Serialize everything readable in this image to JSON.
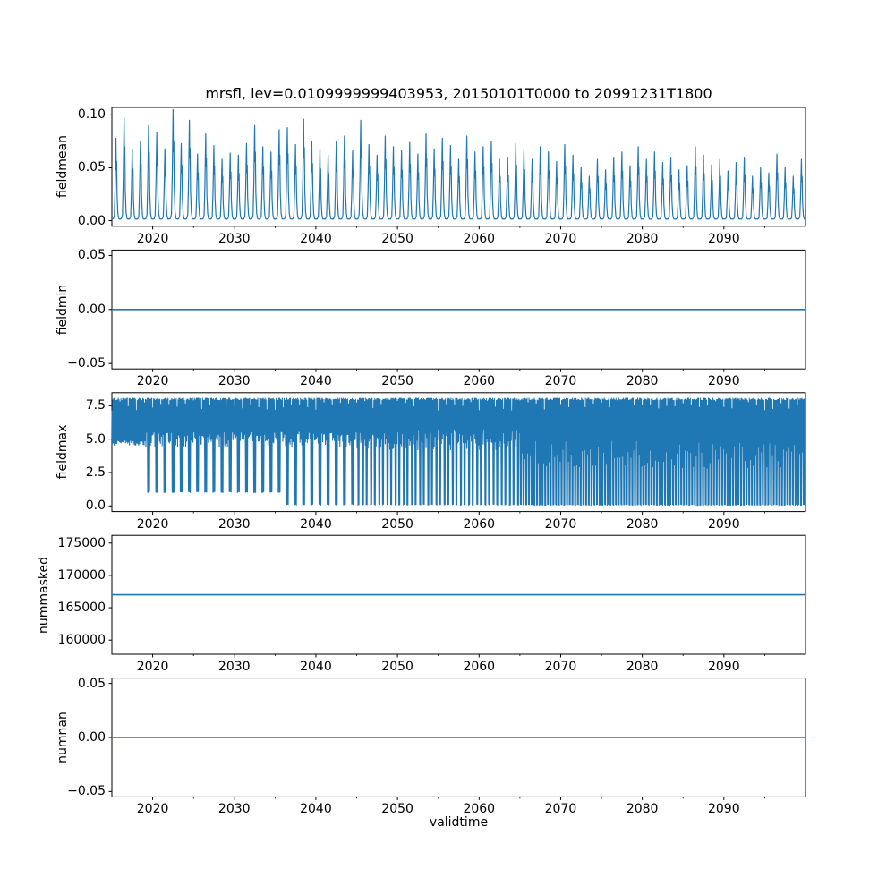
{
  "figure": {
    "title": "mrsfl, lev=0.0109999999403953, 20150101T0000 to 20991231T1800",
    "xlabel": "validtime",
    "line_color": "#1f77b4",
    "background": "#ffffff",
    "x_tick_values": [
      2020,
      2030,
      2040,
      2050,
      2060,
      2070,
      2080,
      2090
    ],
    "x_tick_labels": [
      "2020",
      "2030",
      "2040",
      "2050",
      "2060",
      "2070",
      "2080",
      "2090"
    ],
    "x_minor_ticks": [
      2025,
      2035,
      2045,
      2055,
      2065,
      2075,
      2085,
      2095
    ]
  },
  "chart_data": [
    {
      "type": "line",
      "name": "fieldmean",
      "ylabel": "fieldmean",
      "x_range": [
        2015,
        2100
      ],
      "ylim": [
        -0.0053,
        0.1071
      ],
      "ytick_values": [
        0.0,
        0.05,
        0.1
      ],
      "ytick_labels": [
        "0.00",
        "0.05",
        "0.10"
      ],
      "series": {
        "kind": "annual-spikes",
        "baseline": 0.0015,
        "year_start": 2015,
        "peaks": [
          0.078,
          0.097,
          0.068,
          0.075,
          0.09,
          0.083,
          0.068,
          0.105,
          0.073,
          0.095,
          0.063,
          0.082,
          0.071,
          0.058,
          0.064,
          0.062,
          0.073,
          0.09,
          0.07,
          0.065,
          0.086,
          0.088,
          0.072,
          0.096,
          0.075,
          0.068,
          0.062,
          0.075,
          0.08,
          0.066,
          0.095,
          0.072,
          0.062,
          0.08,
          0.07,
          0.066,
          0.074,
          0.063,
          0.082,
          0.068,
          0.078,
          0.071,
          0.058,
          0.08,
          0.065,
          0.07,
          0.075,
          0.058,
          0.06,
          0.073,
          0.067,
          0.058,
          0.07,
          0.065,
          0.056,
          0.072,
          0.062,
          0.05,
          0.042,
          0.058,
          0.048,
          0.06,
          0.065,
          0.052,
          0.07,
          0.058,
          0.065,
          0.055,
          0.06,
          0.048,
          0.052,
          0.07,
          0.062,
          0.053,
          0.058,
          0.047,
          0.055,
          0.06,
          0.042,
          0.05,
          0.045,
          0.063,
          0.05,
          0.042,
          0.058
        ]
      }
    },
    {
      "type": "line",
      "name": "fieldmin",
      "ylabel": "fieldmin",
      "x_range": [
        2015,
        2100
      ],
      "ylim": [
        -0.055,
        0.055
      ],
      "ytick_values": [
        -0.05,
        0.0,
        0.05
      ],
      "ytick_labels": [
        "−0.05",
        "0.00",
        "0.05"
      ],
      "series": {
        "kind": "constant",
        "value": 0.0
      }
    },
    {
      "type": "line",
      "name": "fieldmax",
      "ylabel": "fieldmax",
      "x_range": [
        2015,
        2100
      ],
      "ylim": [
        -0.42,
        8.47
      ],
      "ytick_values": [
        0.0,
        2.5,
        5.0,
        7.5
      ],
      "ytick_labels": [
        "0.0",
        "2.5",
        "5.0",
        "7.5"
      ],
      "series": {
        "kind": "dense-oscillation",
        "top": 8.05,
        "year_start": 2015,
        "eras": [
          {
            "start": 2015,
            "end": 2019,
            "deep_min": 4.7,
            "deep_per_year": 0,
            "shallow": [
              4.55,
              4.95
            ]
          },
          {
            "start": 2019,
            "end": 2036,
            "deep_min": 1.0,
            "deep_per_year": 1,
            "shallow": [
              4.4,
              5.6
            ]
          },
          {
            "start": 2036,
            "end": 2045,
            "deep_min": 0.06,
            "deep_per_year": 1,
            "shallow": [
              4.4,
              5.6
            ]
          },
          {
            "start": 2045,
            "end": 2065,
            "deep_min": 0.05,
            "deep_per_year": 2,
            "shallow": [
              4.2,
              5.8
            ]
          },
          {
            "start": 2065,
            "end": 2100,
            "deep_min": 0.04,
            "deep_per_year": 3,
            "shallow": [
              2.8,
              4.9
            ]
          }
        ]
      }
    },
    {
      "type": "line",
      "name": "nummasked",
      "ylabel": "nummasked",
      "x_range": [
        2015,
        2100
      ],
      "ylim": [
        157815,
        176185
      ],
      "ytick_values": [
        160000,
        165000,
        170000,
        175000
      ],
      "ytick_labels": [
        "160000",
        "165000",
        "170000",
        "175000"
      ],
      "series": {
        "kind": "constant",
        "value": 167000
      }
    },
    {
      "type": "line",
      "name": "numnan",
      "ylabel": "numnan",
      "x_range": [
        2015,
        2100
      ],
      "ylim": [
        -0.055,
        0.055
      ],
      "ytick_values": [
        -0.05,
        0.0,
        0.05
      ],
      "ytick_labels": [
        "−0.05",
        "0.00",
        "0.05"
      ],
      "series": {
        "kind": "constant",
        "value": 0.0
      }
    }
  ]
}
